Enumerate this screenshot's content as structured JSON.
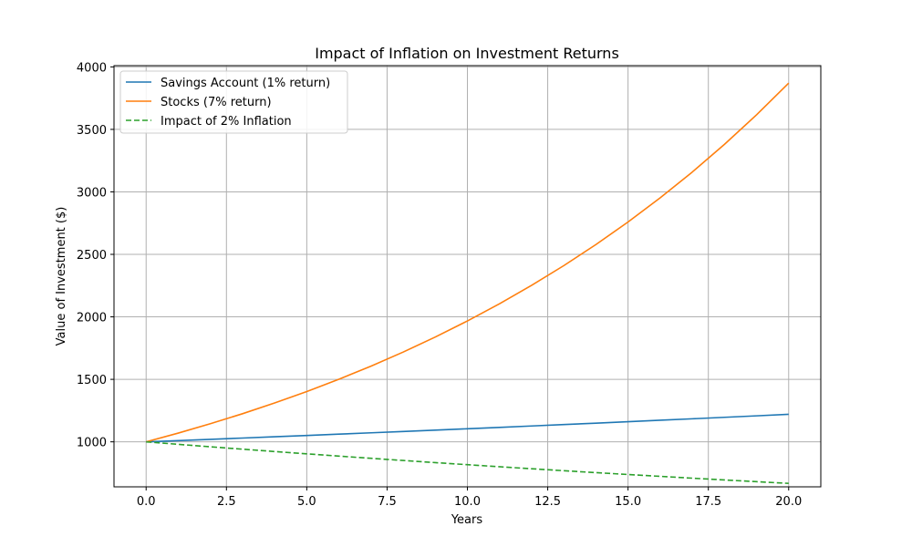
{
  "chart_data": {
    "type": "line",
    "title": "Impact of Inflation on Investment Returns",
    "xlabel": "Years",
    "ylabel": "Value of Investment ($)",
    "xlim": [
      -1,
      21
    ],
    "ylim": [
      640,
      4010
    ],
    "x_ticks": [
      0,
      2.5,
      5,
      7.5,
      10,
      12.5,
      15,
      17.5,
      20
    ],
    "x_tick_labels": [
      "0.0",
      "2.5",
      "5.0",
      "7.5",
      "10.0",
      "12.5",
      "15.0",
      "17.5",
      "20.0"
    ],
    "y_ticks": [
      1000,
      1500,
      2000,
      2500,
      3000,
      3500,
      4000
    ],
    "y_tick_labels": [
      "1000",
      "1500",
      "2000",
      "2500",
      "3000",
      "3500",
      "4000"
    ],
    "grid": true,
    "legend_position": "top-left",
    "x": [
      0,
      1,
      2,
      3,
      4,
      5,
      6,
      7,
      8,
      9,
      10,
      11,
      12,
      13,
      14,
      15,
      16,
      17,
      18,
      19,
      20
    ],
    "series": [
      {
        "name": "Savings Account (1% return)",
        "color": "#1f77b4",
        "dash": "solid",
        "values": [
          1000,
          1010,
          1020.1,
          1030.3,
          1040.6,
          1051.0,
          1061.5,
          1072.1,
          1082.9,
          1093.7,
          1104.6,
          1115.7,
          1126.8,
          1138.1,
          1149.5,
          1161.0,
          1172.6,
          1184.3,
          1196.1,
          1208.1,
          1220.2
        ]
      },
      {
        "name": "Stocks (7% return)",
        "color": "#ff7f0e",
        "dash": "solid",
        "values": [
          1000,
          1070,
          1144.9,
          1225.0,
          1310.8,
          1402.6,
          1500.7,
          1605.8,
          1718.2,
          1838.5,
          1967.2,
          2104.9,
          2252.2,
          2409.8,
          2578.5,
          2759.0,
          2952.2,
          3158.8,
          3379.9,
          3616.5,
          3869.7
        ]
      },
      {
        "name": "Impact of 2% Inflation",
        "color": "#2ca02c",
        "dash": "dashed",
        "values": [
          1000,
          980,
          960.4,
          941.2,
          922.4,
          903.9,
          885.8,
          868.1,
          850.8,
          833.7,
          817.1,
          800.7,
          784.7,
          769.0,
          753.6,
          738.6,
          723.8,
          709.3,
          695.1,
          681.2,
          667.6
        ]
      }
    ]
  }
}
